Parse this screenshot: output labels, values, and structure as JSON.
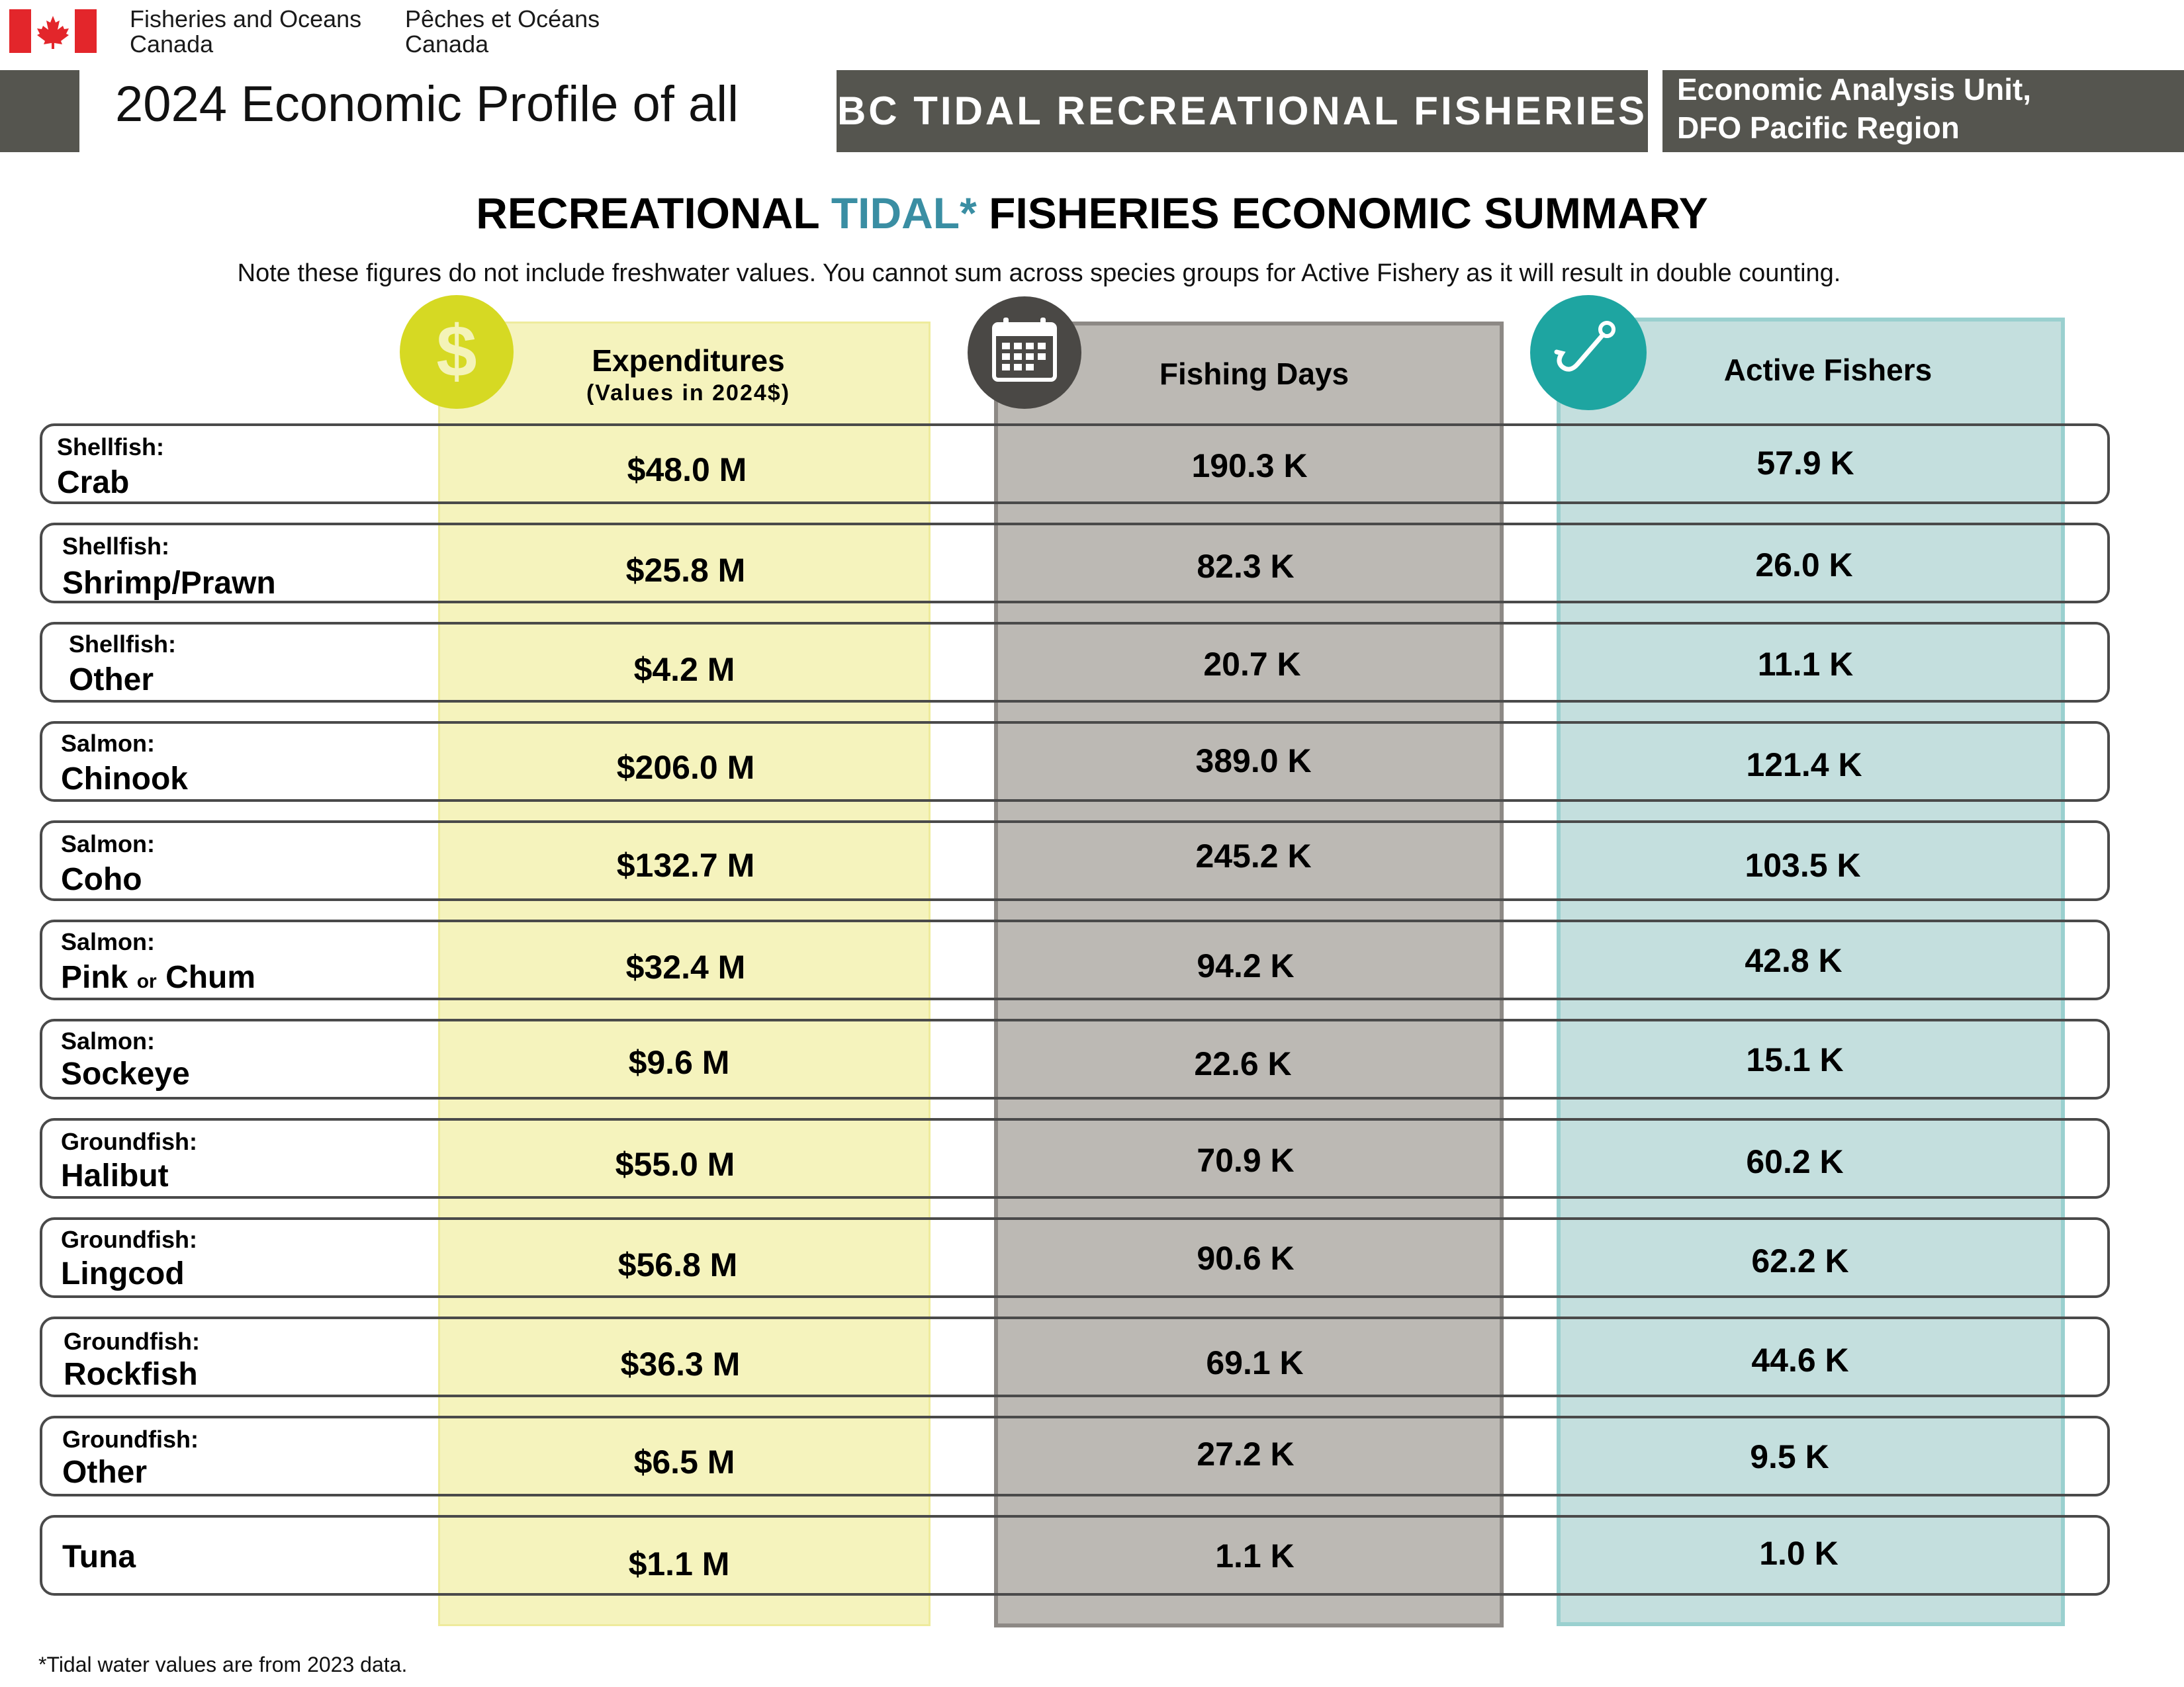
{
  "header": {
    "dept_en_line1": "Fisheries and Oceans",
    "dept_en_line2": "Canada",
    "dept_fr_line1": "Pêches et Océans",
    "dept_fr_line2": "Canada",
    "title": "2024 Economic Profile of all",
    "banner": "BC TIDAL RECREATIONAL FISHERIES",
    "unit_line1": "Economic Analysis Unit,",
    "unit_line2": "DFO Pacific Region"
  },
  "summary": {
    "title_pre": "RECREATIONAL ",
    "title_accent": "TIDAL*",
    "title_post": " FISHERIES ECONOMIC SUMMARY",
    "note": "Note these figures do not include freshwater values. You cannot sum across species groups for Active Fishery as it will result in double counting."
  },
  "columns": {
    "expenditures": "Expenditures",
    "expenditures_sub": "(Values in 2024$)",
    "fishing_days": "Fishing Days",
    "active_fishers": "Active Fishers"
  },
  "icons": {
    "expenditures": "dollar-icon",
    "fishing_days": "calendar-icon",
    "active_fishers": "fish-hook-icon",
    "dollar_glyph": "$"
  },
  "colors": {
    "accent": "#3a8ea3",
    "header_bar": "#55554f",
    "expenditures_fill": "#f5f3bd",
    "expenditures_icon": "#d6d923",
    "days_fill": "#bcb9b4",
    "days_icon": "#4a4845",
    "fishers_fill": "#c4dfde",
    "fishers_icon": "#1ea5a1",
    "flag_red": "#e3262b"
  },
  "rows": [
    {
      "category": "Shellfish:",
      "name": "Crab",
      "expenditures": "$48.0 M",
      "fishing_days": "190.3 K",
      "active_fishers": "57.9 K"
    },
    {
      "category": "Shellfish:",
      "name": "Shrimp/Prawn",
      "expenditures": "$25.8 M",
      "fishing_days": "82.3 K",
      "active_fishers": "26.0 K"
    },
    {
      "category": "Shellfish:",
      "name": "Other",
      "expenditures": "$4.2 M",
      "fishing_days": "20.7 K",
      "active_fishers": "11.1 K"
    },
    {
      "category": "Salmon:",
      "name": "Chinook",
      "expenditures": "$206.0 M",
      "fishing_days": "389.0 K",
      "active_fishers": "121.4 K"
    },
    {
      "category": "Salmon:",
      "name": "Coho",
      "expenditures": "$132.7 M",
      "fishing_days": "245.2 K",
      "active_fishers": "103.5 K"
    },
    {
      "category": "Salmon:",
      "name_a": "Pink",
      "name_or": "or",
      "name_b": "Chum",
      "expenditures": "$32.4 M",
      "fishing_days": "94.2 K",
      "active_fishers": "42.8 K"
    },
    {
      "category": "Salmon:",
      "name": "Sockeye",
      "expenditures": "$9.6 M",
      "fishing_days": "22.6 K",
      "active_fishers": "15.1 K"
    },
    {
      "category": "Groundfish:",
      "name": "Halibut",
      "expenditures": "$55.0 M",
      "fishing_days": "70.9 K",
      "active_fishers": "60.2 K"
    },
    {
      "category": "Groundfish:",
      "name": "Lingcod",
      "expenditures": "$56.8 M",
      "fishing_days": "90.6 K",
      "active_fishers": "62.2 K"
    },
    {
      "category": "Groundfish:",
      "name": "Rockfish",
      "expenditures": "$36.3 M",
      "fishing_days": "69.1 K",
      "active_fishers": "44.6 K"
    },
    {
      "category": "Groundfish:",
      "name": "Other",
      "expenditures": "$6.5 M",
      "fishing_days": "27.2 K",
      "active_fishers": "9.5 K"
    },
    {
      "category": "",
      "name": "Tuna",
      "expenditures": "$1.1 M",
      "fishing_days": "1.1 K",
      "active_fishers": "1.0 K"
    }
  ],
  "footnote": "*Tidal water values are from 2023 data."
}
